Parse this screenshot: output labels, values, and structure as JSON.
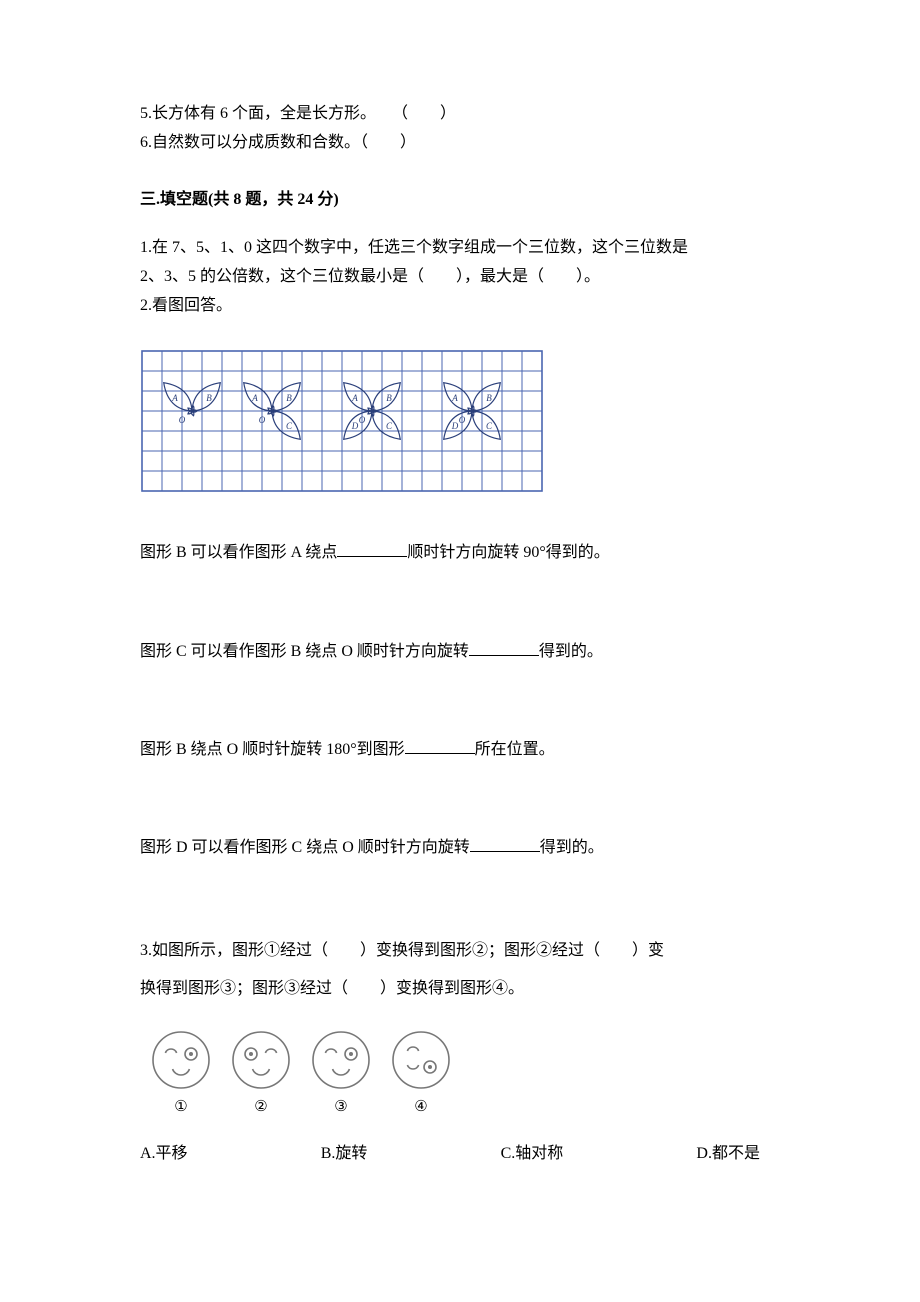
{
  "judgement": {
    "q5": "5.长方体有 6 个面，全是长方形。　　（　　）",
    "q6": "6.自然数可以分成质数和合数。（　　）"
  },
  "section3": {
    "header": "三.填空题(共 8 题，共 24 分)",
    "q1_line1": "1.在 7、5、1、0 这四个数字中，任选三个数字组成一个三位数，这个三位数是",
    "q1_line2": "2、3、5 的公倍数，这个三位数最小是（　　），最大是（　　）。",
    "q2_intro": "2.看图回答。",
    "q2a_pre": "图形 B 可以看作图形 A 绕点",
    "q2a_post": "顺时针方向旋转 90°得到的。",
    "q2b_pre": "图形 C 可以看作图形 B 绕点 O 顺时针方向旋转",
    "q2b_post": "得到的。",
    "q2c_pre": "图形 B 绕点 O 顺时针旋转 180°到图形",
    "q2c_post": "所在位置。",
    "q2d_pre": "图形 D 可以看作图形 C 绕点 O 顺时针方向旋转",
    "q2d_post": "得到的。",
    "q3_line1": "3.如图所示，图形①经过（　　）变换得到图形②；图形②经过（　　）变",
    "q3_line2": "换得到图形③；图形③经过（　　）变换得到图形④。",
    "q3_options": {
      "a": "A.平移",
      "b": "B.旋转",
      "c": "C.轴对称",
      "d": "D.都不是"
    },
    "faces_labels": [
      "①",
      "②",
      "③",
      "④"
    ]
  },
  "butterfly_grid": {
    "grid_stroke": "#4a66b0",
    "outline_stroke": "#2a3f7a",
    "grid_width": 1,
    "outline_width": 1.2,
    "cols": 20,
    "rows": 7,
    "cell": 20,
    "label_fontsize": 9
  },
  "faces": {
    "stroke": "#777777",
    "stroke_width": 1.6,
    "radius": 28
  }
}
